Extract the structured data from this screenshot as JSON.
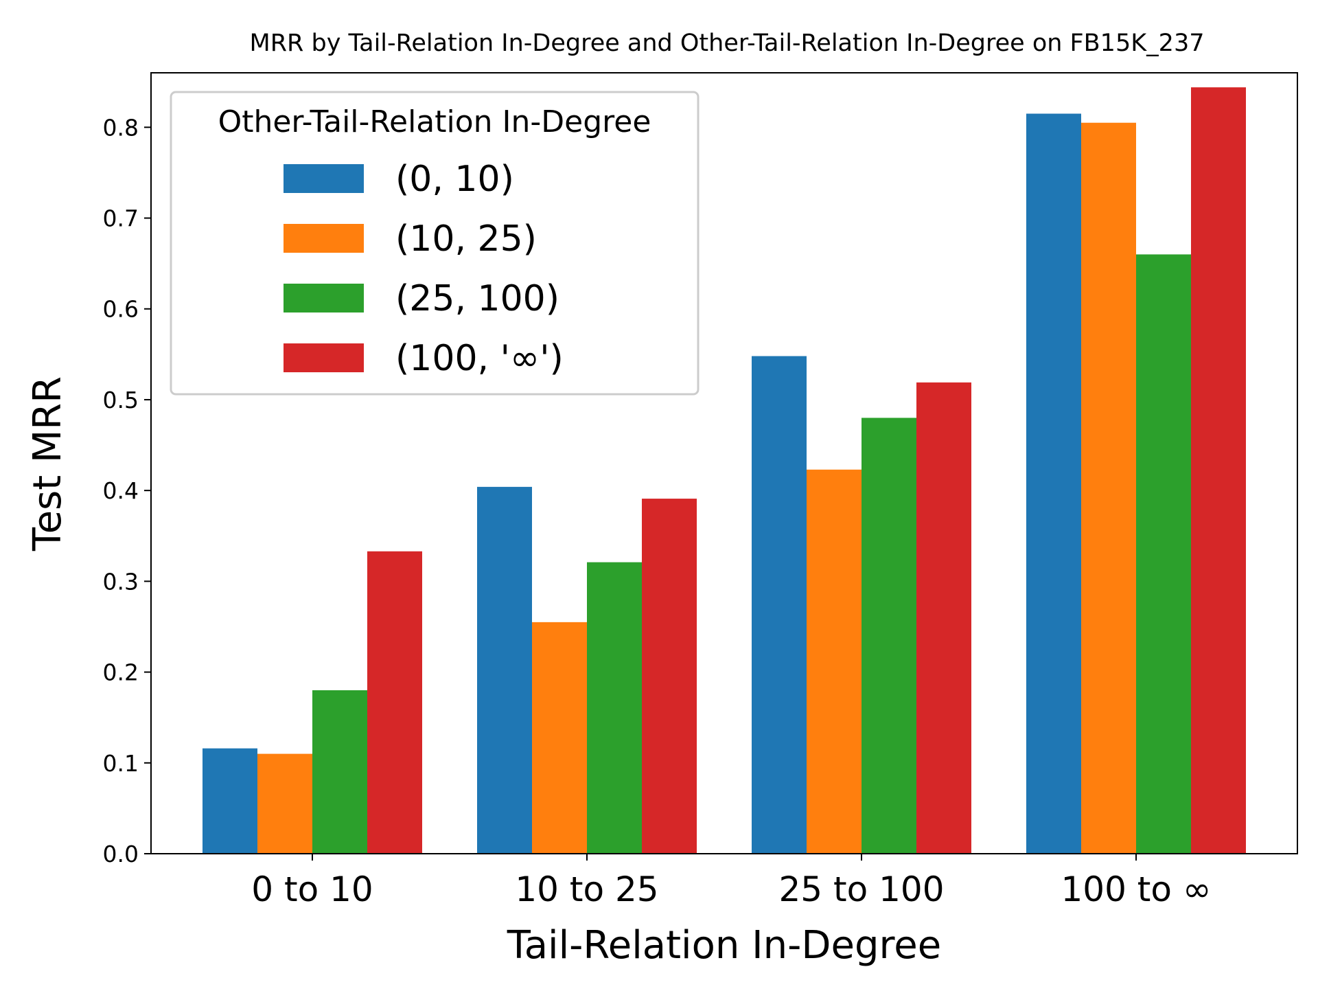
{
  "chart_data": {
    "type": "bar",
    "title": "MRR by Tail-Relation In-Degree and Other-Tail-Relation In-Degree on FB15K_237",
    "xlabel": "Tail-Relation In-Degree",
    "ylabel": "Test MRR",
    "categories": [
      "0 to 10",
      "10 to 25",
      "25 to 100",
      "100 to ∞"
    ],
    "ylim": [
      0,
      0.86
    ],
    "yticks": [
      0.0,
      0.1,
      0.2,
      0.3,
      0.4,
      0.5,
      0.6,
      0.7,
      0.8
    ],
    "ytick_labels": [
      "0.0",
      "0.1",
      "0.2",
      "0.3",
      "0.4",
      "0.5",
      "0.6",
      "0.7",
      "0.8"
    ],
    "grid": false,
    "legend": {
      "title": "Other-Tail-Relation In-Degree",
      "position": "top-left"
    },
    "series": [
      {
        "name": "(0, 10)",
        "color": "#1f77b4",
        "values": [
          0.116,
          0.404,
          0.548,
          0.815
        ]
      },
      {
        "name": "(10, 25)",
        "color": "#ff7f0e",
        "values": [
          0.11,
          0.255,
          0.423,
          0.805
        ]
      },
      {
        "name": "(25, 100)",
        "color": "#2ca02c",
        "values": [
          0.18,
          0.321,
          0.48,
          0.66
        ]
      },
      {
        "name": "(100, '∞')",
        "color": "#d62728",
        "values": [
          0.333,
          0.391,
          0.519,
          0.844
        ]
      }
    ]
  }
}
